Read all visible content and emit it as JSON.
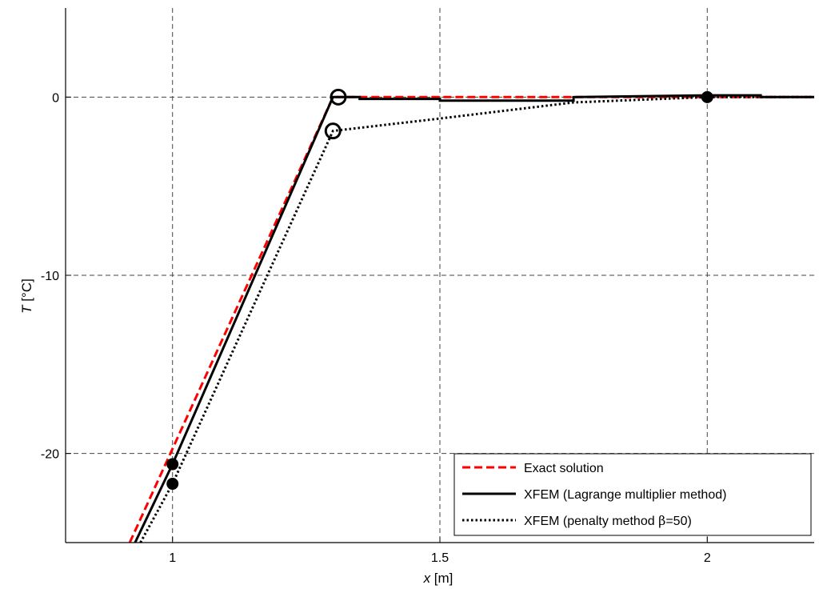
{
  "chart_data": {
    "type": "line",
    "xlabel_var": "x",
    "xlabel_unit": " [m]",
    "ylabel_var": "T",
    "ylabel_unit": " [°C]",
    "xlim": [
      0.8,
      2.2
    ],
    "ylim": [
      -25,
      5
    ],
    "x_ticks": [
      1,
      1.5,
      2
    ],
    "x_tick_labels": [
      "1",
      "1.5",
      "2"
    ],
    "y_ticks": [
      -20,
      -10,
      0
    ],
    "y_tick_labels": [
      "-20",
      "-10",
      "0"
    ],
    "grid": true,
    "legend_position": "bottom-right",
    "series": [
      {
        "name": "Exact solution",
        "color": "#ff0000",
        "style": "dashed",
        "points": [
          [
            0.92,
            -25
          ],
          [
            1.3,
            0
          ],
          [
            2.2,
            0
          ]
        ]
      },
      {
        "name": "XFEM (Lagrange multiplier method)",
        "color": "#000000",
        "style": "solid",
        "points": [
          [
            0.93,
            -25
          ],
          [
            1.0,
            -20.6
          ],
          [
            1.3,
            0
          ],
          [
            1.35,
            0
          ],
          [
            1.35,
            -0.1
          ],
          [
            1.5,
            -0.1
          ],
          [
            1.5,
            -0.2
          ],
          [
            1.75,
            -0.2
          ],
          [
            1.75,
            0
          ],
          [
            2.0,
            0.1
          ],
          [
            2.1,
            0.1
          ],
          [
            2.1,
            0
          ],
          [
            2.2,
            0
          ]
        ]
      },
      {
        "name": "XFEM (penalty method β=50)",
        "color": "#000000",
        "style": "dotted",
        "points": [
          [
            0.94,
            -25
          ],
          [
            1.0,
            -21.7
          ],
          [
            1.3,
            -1.9
          ],
          [
            1.5,
            -1.2
          ],
          [
            1.75,
            -0.3
          ],
          [
            2.0,
            0
          ],
          [
            2.2,
            0
          ]
        ]
      }
    ],
    "markers": [
      {
        "x": 1.0,
        "y": -20.6,
        "type": "filled"
      },
      {
        "x": 1.0,
        "y": -21.7,
        "type": "filled"
      },
      {
        "x": 2.0,
        "y": 0,
        "type": "filled"
      },
      {
        "x": 1.31,
        "y": 0,
        "type": "open"
      },
      {
        "x": 1.3,
        "y": -1.9,
        "type": "open"
      }
    ],
    "legend": {
      "items": [
        "Exact solution",
        "XFEM (Lagrange multiplier method)",
        "XFEM (penalty method β=50)"
      ],
      "penalty_prefix": "XFEM (penalty method ",
      "penalty_symbol": "β",
      "penalty_suffix": "=50)"
    }
  }
}
